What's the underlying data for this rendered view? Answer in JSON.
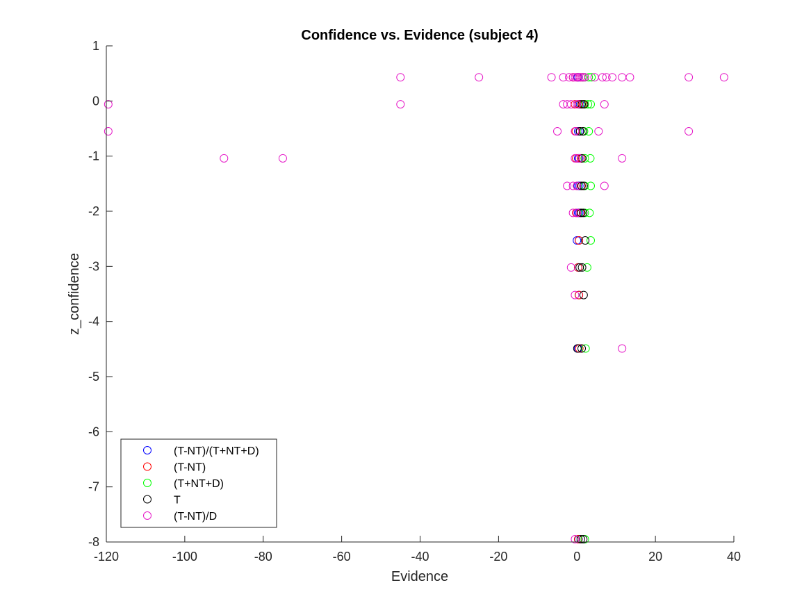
{
  "chart_data": {
    "type": "scatter",
    "title": "Confidence vs. Evidence (subject 4)",
    "xlabel": "Evidence",
    "ylabel": "z_confidence",
    "xlim": [
      -120,
      40
    ],
    "ylim": [
      -8,
      1
    ],
    "xticks": [
      -120,
      -100,
      -80,
      -60,
      -40,
      -20,
      0,
      20,
      40
    ],
    "yticks": [
      -8,
      -7,
      -6,
      -5,
      -4,
      -3,
      -2,
      -1,
      0,
      1
    ],
    "xtick_labels": [
      "-120",
      "-100",
      "-80",
      "-60",
      "-40",
      "-20",
      "0",
      "20",
      "40"
    ],
    "ytick_labels": [
      "-8",
      "-7",
      "-6",
      "-5",
      "-4",
      "-3",
      "-2",
      "-1",
      "0",
      "1"
    ],
    "grid": false,
    "legend_position": "bottom-left",
    "marker": "open-circle",
    "series": [
      {
        "name": "(T-NT)/(T+NT+D)",
        "color": "#0000ff",
        "points": [
          [
            0.2,
            0.43
          ],
          [
            0.5,
            0.43
          ],
          [
            0.8,
            -0.06
          ],
          [
            0.4,
            -0.06
          ],
          [
            0.3,
            -0.55
          ],
          [
            0.7,
            -0.55
          ],
          [
            0.3,
            -1.04
          ],
          [
            0.6,
            -1.04
          ],
          [
            0.2,
            -1.54
          ],
          [
            0.6,
            -1.54
          ],
          [
            0.3,
            -2.03
          ],
          [
            0.6,
            -2.03
          ],
          [
            0.0,
            -2.53
          ],
          [
            0.5,
            -2.53
          ],
          [
            0.3,
            -3.02
          ],
          [
            0.5,
            -3.52
          ],
          [
            0.3,
            -4.49
          ],
          [
            0.4,
            -7.95
          ]
        ]
      },
      {
        "name": "(T-NT)",
        "color": "#ff0000",
        "points": [
          [
            -1.0,
            0.43
          ],
          [
            0.0,
            0.43
          ],
          [
            1.0,
            0.43
          ],
          [
            -0.5,
            -0.06
          ],
          [
            0.5,
            -0.06
          ],
          [
            1.5,
            -0.06
          ],
          [
            -0.3,
            -0.55
          ],
          [
            0.8,
            -0.55
          ],
          [
            -0.2,
            -1.04
          ],
          [
            1.0,
            -1.04
          ],
          [
            0.0,
            -1.54
          ],
          [
            1.2,
            -1.54
          ],
          [
            -0.2,
            -2.03
          ],
          [
            0.9,
            -2.03
          ],
          [
            0.5,
            -2.53
          ],
          [
            0.3,
            -3.02
          ],
          [
            0.5,
            -3.52
          ],
          [
            0.6,
            -4.49
          ],
          [
            0.3,
            -7.95
          ]
        ]
      },
      {
        "name": "(T+NT+D)",
        "color": "#00ff00",
        "points": [
          [
            2.0,
            0.43
          ],
          [
            3.0,
            0.43
          ],
          [
            3.7,
            0.43
          ],
          [
            2.0,
            -0.06
          ],
          [
            2.8,
            -0.06
          ],
          [
            3.5,
            -0.06
          ],
          [
            1.8,
            -0.55
          ],
          [
            3.0,
            -0.55
          ],
          [
            2.0,
            -1.04
          ],
          [
            3.4,
            -1.04
          ],
          [
            2.0,
            -1.54
          ],
          [
            3.5,
            -1.54
          ],
          [
            2.0,
            -2.03
          ],
          [
            3.2,
            -2.03
          ],
          [
            3.5,
            -2.53
          ],
          [
            2.6,
            -3.02
          ],
          [
            2.2,
            -4.49
          ],
          [
            2.0,
            -7.95
          ]
        ]
      },
      {
        "name": "T",
        "color": "#000000",
        "points": [
          [
            1.5,
            0.43
          ],
          [
            1.2,
            -0.06
          ],
          [
            1.8,
            -0.06
          ],
          [
            0.8,
            -0.55
          ],
          [
            1.5,
            -0.55
          ],
          [
            1.3,
            -1.04
          ],
          [
            1.1,
            -1.54
          ],
          [
            1.7,
            -1.54
          ],
          [
            1.1,
            -2.03
          ],
          [
            1.6,
            -2.03
          ],
          [
            2.1,
            -2.53
          ],
          [
            0.7,
            -3.02
          ],
          [
            1.3,
            -3.02
          ],
          [
            1.7,
            -3.52
          ],
          [
            0.1,
            -4.49
          ],
          [
            1.2,
            -4.49
          ],
          [
            1.0,
            -7.95
          ],
          [
            1.6,
            -7.95
          ]
        ]
      },
      {
        "name": "(T-NT)/D",
        "color": "#e619c8",
        "points": [
          [
            -45,
            0.43
          ],
          [
            -25,
            0.43
          ],
          [
            -6.5,
            0.43
          ],
          [
            -3.5,
            0.43
          ],
          [
            -2.0,
            0.43
          ],
          [
            -1.0,
            0.43
          ],
          [
            -0.5,
            0.43
          ],
          [
            0.0,
            0.43
          ],
          [
            0.5,
            0.43
          ],
          [
            1.0,
            0.43
          ],
          [
            1.5,
            0.43
          ],
          [
            2.0,
            0.43
          ],
          [
            4.5,
            0.43
          ],
          [
            6.5,
            0.43
          ],
          [
            7.5,
            0.43
          ],
          [
            9.0,
            0.43
          ],
          [
            11.5,
            0.43
          ],
          [
            13.5,
            0.43
          ],
          [
            28.5,
            0.43
          ],
          [
            37.5,
            0.43
          ],
          [
            -119.5,
            -0.06
          ],
          [
            -45,
            -0.06
          ],
          [
            -3.5,
            -0.06
          ],
          [
            -2.5,
            -0.06
          ],
          [
            -1.5,
            -0.06
          ],
          [
            0.0,
            -0.06
          ],
          [
            7.0,
            -0.06
          ],
          [
            -119.5,
            -0.55
          ],
          [
            -5.0,
            -0.55
          ],
          [
            -0.5,
            -0.55
          ],
          [
            5.5,
            -0.55
          ],
          [
            28.5,
            -0.55
          ],
          [
            -90,
            -1.04
          ],
          [
            -75,
            -1.04
          ],
          [
            -0.5,
            -1.04
          ],
          [
            0.5,
            -1.04
          ],
          [
            11.5,
            -1.04
          ],
          [
            -2.5,
            -1.54
          ],
          [
            -1.0,
            -1.54
          ],
          [
            0.0,
            -1.54
          ],
          [
            7.0,
            -1.54
          ],
          [
            -1.0,
            -2.03
          ],
          [
            0.0,
            -2.03
          ],
          [
            -1.5,
            -3.02
          ],
          [
            -0.5,
            -3.52
          ],
          [
            11.5,
            -4.49
          ],
          [
            -0.5,
            -7.95
          ]
        ]
      }
    ]
  }
}
